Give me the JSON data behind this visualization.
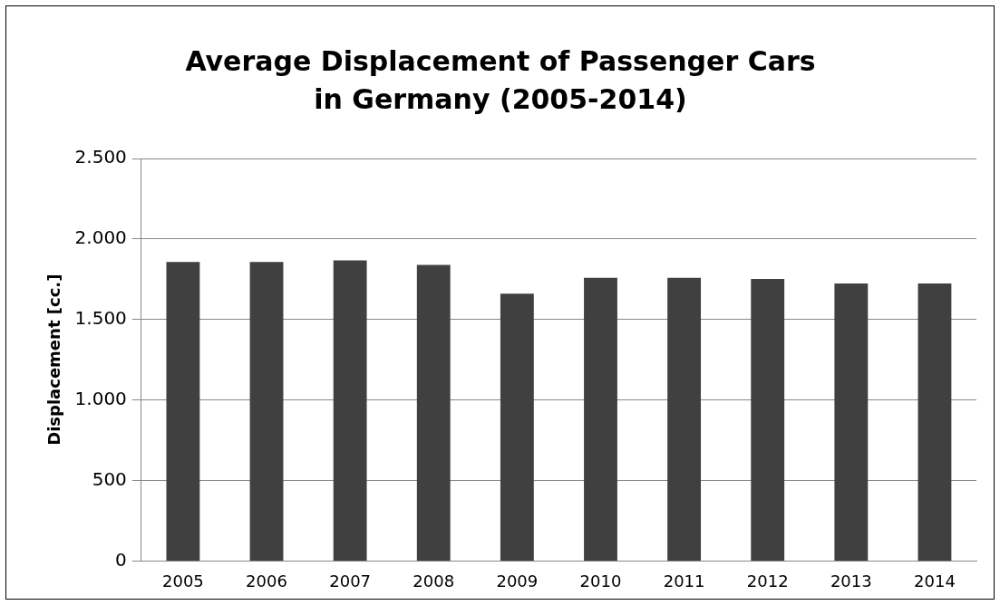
{
  "chart_data": {
    "type": "bar",
    "title": "Average Displacement of Passenger Cars in Germany (2005-2014)",
    "ylabel": "Displacement [cc.]",
    "categories": [
      "2005",
      "2006",
      "2007",
      "2008",
      "2009",
      "2010",
      "2011",
      "2012",
      "2013",
      "2014"
    ],
    "values": [
      1857,
      1857,
      1867,
      1839,
      1660,
      1759,
      1759,
      1752,
      1724,
      1724
    ],
    "color": "#404040",
    "ylim": [
      0,
      2500
    ],
    "yticks": [
      0,
      500,
      {
        "value": 1000,
        "label": "1.000"
      },
      {
        "value": 1500,
        "label": "1.500"
      },
      {
        "value": 2000,
        "label": "2.000"
      },
      {
        "value": 2500,
        "label": "2.500"
      }
    ],
    "grid": "y",
    "legend": false
  }
}
